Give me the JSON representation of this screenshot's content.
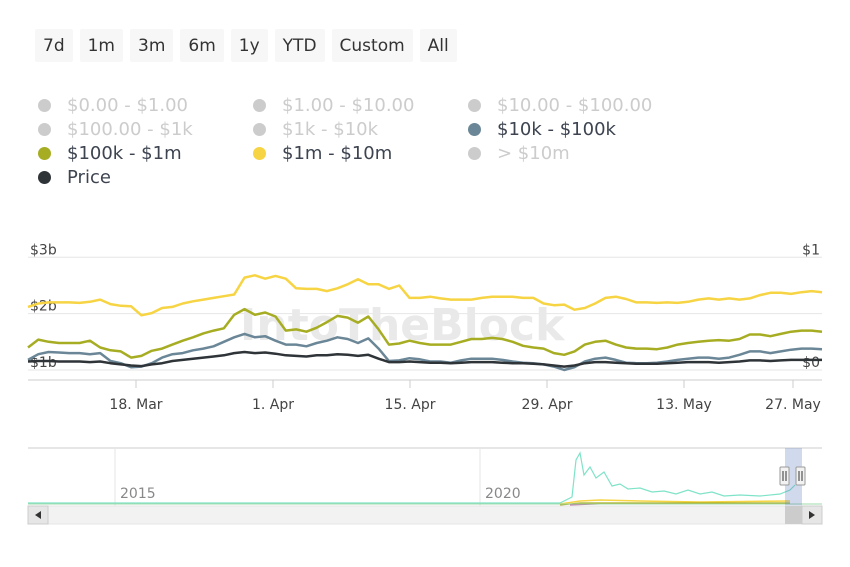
{
  "range_buttons": [
    "7d",
    "1m",
    "3m",
    "6m",
    "1y",
    "YTD",
    "Custom",
    "All"
  ],
  "legend": [
    {
      "label": "$0.00 - $1.00",
      "color": "#cccccc",
      "active": false
    },
    {
      "label": "$1.00 - $10.00",
      "color": "#cccccc",
      "active": false
    },
    {
      "label": "$10.00 - $100.00",
      "color": "#cccccc",
      "active": false
    },
    {
      "label": "$100.00 - $1k",
      "color": "#cccccc",
      "active": false
    },
    {
      "label": "$1k - $10k",
      "color": "#cccccc",
      "active": false
    },
    {
      "label": "$10k - $100k",
      "color": "#6b8797",
      "active": true
    },
    {
      "label": "$100k - $1m",
      "color": "#a7ad22",
      "active": true
    },
    {
      "label": "$1m - $10m",
      "color": "#f6d443",
      "active": true
    },
    {
      "label": "> $10m",
      "color": "#cccccc",
      "active": false
    },
    {
      "label": "Price",
      "color": "#2f3438",
      "active": true
    }
  ],
  "watermark": "IntoTheBlock",
  "navigator": {
    "year_labels": [
      "2015",
      "2020"
    ]
  },
  "chart_data": {
    "type": "line",
    "x_tick_labels": [
      "18. Mar",
      "1. Apr",
      "15. Apr",
      "29. Apr",
      "13. May",
      "27. May"
    ],
    "y_left_tick_labels": [
      "$3b",
      "$2b",
      "$1b"
    ],
    "y_left_range": [
      1,
      3
    ],
    "y_right_tick_labels": [
      "$1",
      "$0"
    ],
    "y_right_range": [
      0,
      1
    ],
    "grid": true,
    "legend_position": "top",
    "series": [
      {
        "name": "$1m - $10m",
        "color": "#f6d443",
        "axis": "left",
        "values": [
          2.12,
          2.18,
          2.2,
          2.2,
          2.2,
          2.19,
          2.21,
          2.25,
          2.17,
          2.14,
          2.13,
          1.97,
          2.01,
          2.1,
          2.12,
          2.18,
          2.22,
          2.25,
          2.28,
          2.31,
          2.34,
          2.64,
          2.68,
          2.62,
          2.67,
          2.62,
          2.45,
          2.44,
          2.44,
          2.4,
          2.45,
          2.52,
          2.61,
          2.52,
          2.52,
          2.44,
          2.5,
          2.28,
          2.28,
          2.3,
          2.27,
          2.25,
          2.25,
          2.25,
          2.28,
          2.3,
          2.3,
          2.3,
          2.28,
          2.28,
          2.18,
          2.15,
          2.16,
          2.07,
          2.1,
          2.18,
          2.28,
          2.3,
          2.26,
          2.2,
          2.2,
          2.19,
          2.2,
          2.19,
          2.21,
          2.25,
          2.27,
          2.25,
          2.27,
          2.25,
          2.27,
          2.33,
          2.37,
          2.37,
          2.35,
          2.38,
          2.4,
          2.38
        ]
      },
      {
        "name": "$100k - $1m",
        "color": "#a7ad22",
        "axis": "left",
        "values": [
          1.4,
          1.54,
          1.5,
          1.48,
          1.48,
          1.48,
          1.52,
          1.4,
          1.35,
          1.33,
          1.22,
          1.25,
          1.34,
          1.38,
          1.45,
          1.52,
          1.58,
          1.65,
          1.7,
          1.74,
          1.98,
          2.08,
          1.98,
          2.02,
          1.95,
          1.7,
          1.72,
          1.68,
          1.75,
          1.85,
          1.96,
          1.93,
          1.84,
          1.95,
          1.72,
          1.45,
          1.47,
          1.52,
          1.48,
          1.45,
          1.45,
          1.45,
          1.5,
          1.55,
          1.55,
          1.57,
          1.55,
          1.5,
          1.43,
          1.4,
          1.38,
          1.3,
          1.27,
          1.33,
          1.45,
          1.5,
          1.52,
          1.45,
          1.4,
          1.38,
          1.38,
          1.37,
          1.4,
          1.45,
          1.48,
          1.5,
          1.52,
          1.53,
          1.52,
          1.55,
          1.63,
          1.63,
          1.6,
          1.64,
          1.68,
          1.7,
          1.7,
          1.68
        ]
      },
      {
        "name": "$10k - $100k",
        "color": "#6b8797",
        "axis": "left",
        "values": [
          1.18,
          1.28,
          1.32,
          1.31,
          1.3,
          1.3,
          1.28,
          1.3,
          1.16,
          1.12,
          1.05,
          1.06,
          1.12,
          1.22,
          1.28,
          1.3,
          1.35,
          1.38,
          1.42,
          1.5,
          1.58,
          1.64,
          1.58,
          1.6,
          1.52,
          1.45,
          1.45,
          1.42,
          1.48,
          1.52,
          1.58,
          1.55,
          1.48,
          1.56,
          1.38,
          1.16,
          1.17,
          1.21,
          1.19,
          1.15,
          1.15,
          1.13,
          1.17,
          1.2,
          1.2,
          1.2,
          1.18,
          1.15,
          1.13,
          1.12,
          1.1,
          1.06,
          1.0,
          1.05,
          1.15,
          1.2,
          1.22,
          1.18,
          1.13,
          1.12,
          1.12,
          1.13,
          1.15,
          1.18,
          1.2,
          1.22,
          1.22,
          1.2,
          1.22,
          1.27,
          1.33,
          1.33,
          1.3,
          1.33,
          1.36,
          1.38,
          1.38,
          1.37
        ]
      },
      {
        "name": "Price",
        "color": "#2f3438",
        "axis": "left",
        "values": [
          1.15,
          1.16,
          1.16,
          1.15,
          1.15,
          1.15,
          1.14,
          1.15,
          1.12,
          1.1,
          1.08,
          1.07,
          1.1,
          1.12,
          1.16,
          1.18,
          1.2,
          1.22,
          1.24,
          1.26,
          1.3,
          1.32,
          1.3,
          1.31,
          1.29,
          1.26,
          1.25,
          1.24,
          1.26,
          1.26,
          1.28,
          1.27,
          1.25,
          1.27,
          1.2,
          1.14,
          1.14,
          1.15,
          1.14,
          1.13,
          1.13,
          1.12,
          1.13,
          1.14,
          1.14,
          1.14,
          1.13,
          1.12,
          1.12,
          1.11,
          1.1,
          1.08,
          1.06,
          1.08,
          1.12,
          1.14,
          1.14,
          1.13,
          1.12,
          1.11,
          1.11,
          1.11,
          1.12,
          1.13,
          1.14,
          1.14,
          1.14,
          1.13,
          1.14,
          1.15,
          1.17,
          1.17,
          1.16,
          1.17,
          1.18,
          1.18,
          1.18,
          1.18
        ]
      }
    ]
  }
}
